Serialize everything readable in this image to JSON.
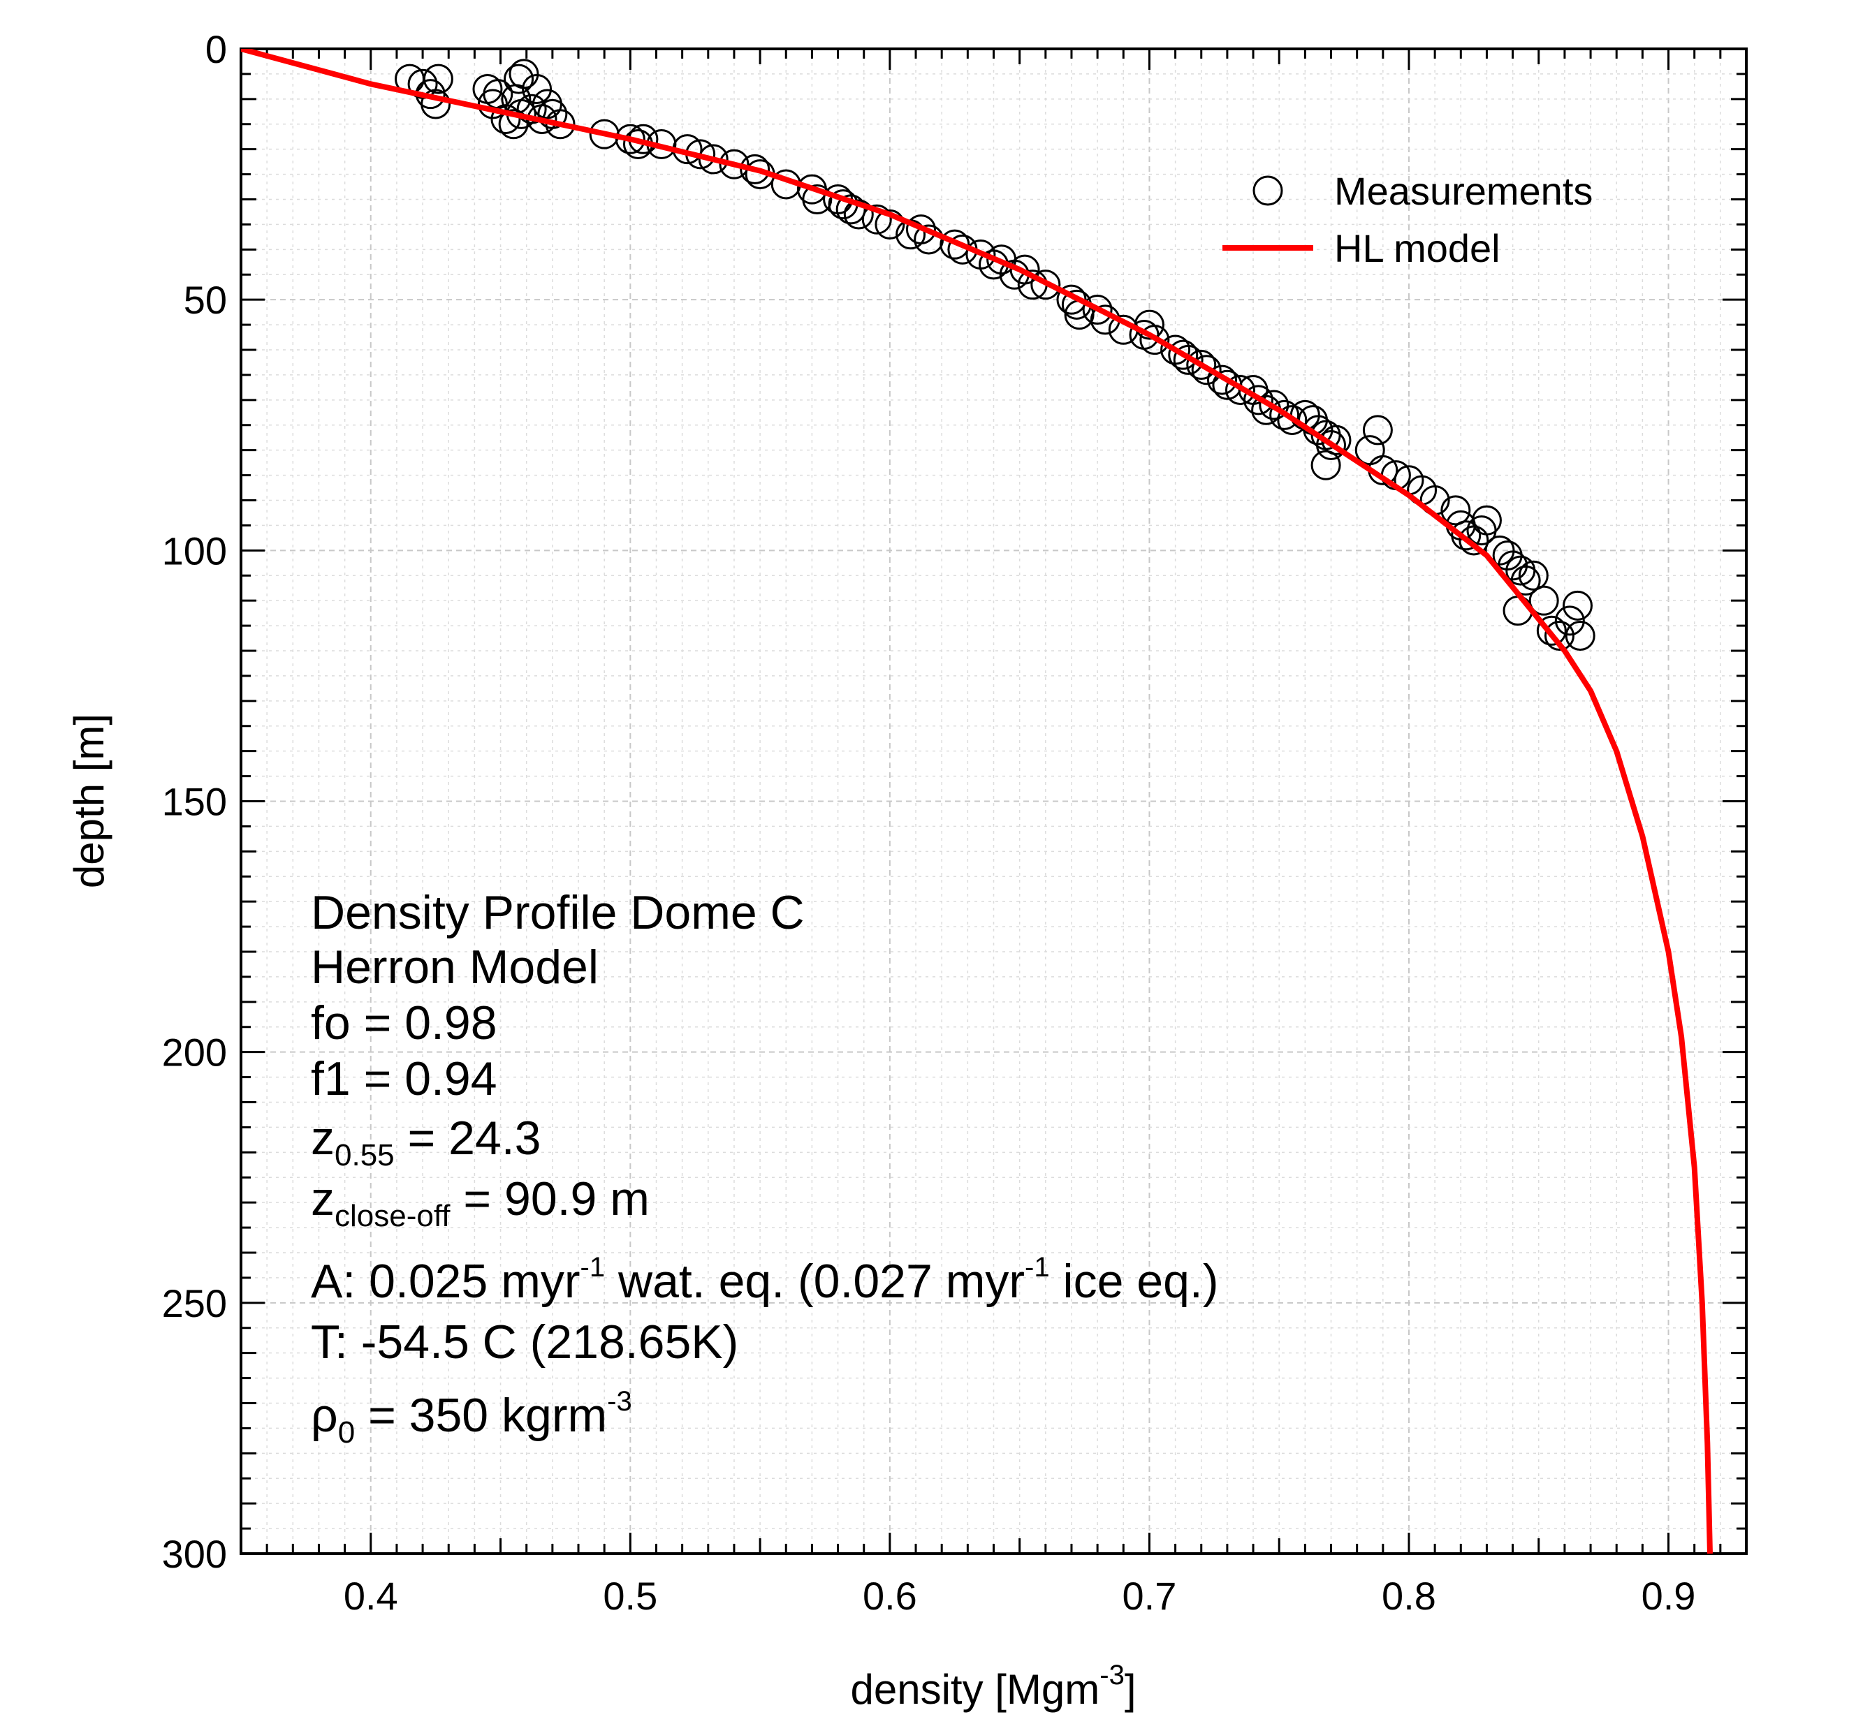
{
  "chart_data": {
    "type": "scatter",
    "xlabel": "density [Mgm",
    "xlabel_sup": "-3",
    "xlabel_end": "]",
    "ylabel": "depth [m]",
    "xlim": [
      0.35,
      0.93
    ],
    "ylim": [
      300,
      0
    ],
    "x_ticks": [
      0.4,
      0.5,
      0.6,
      0.7,
      0.8,
      0.9
    ],
    "x_tick_labels": [
      "0.4",
      "0.5",
      "0.6",
      "0.7",
      "0.8",
      "0.9"
    ],
    "y_ticks": [
      0,
      50,
      100,
      150,
      200,
      250,
      300
    ],
    "y_tick_labels": [
      "0",
      "50",
      "100",
      "150",
      "200",
      "250",
      "300"
    ],
    "grid": true,
    "legend_position": "top-right",
    "legend": [
      {
        "label": "Measurements",
        "marker": "open-circle",
        "color": "#000000"
      },
      {
        "label": "HL model",
        "marker": "line",
        "color": "#ff0000"
      }
    ],
    "series": [
      {
        "name": "Measurements",
        "type": "scatter",
        "color": "#000000",
        "points": [
          [
            0.415,
            6
          ],
          [
            0.42,
            7
          ],
          [
            0.423,
            9
          ],
          [
            0.425,
            11
          ],
          [
            0.426,
            6
          ],
          [
            0.445,
            8
          ],
          [
            0.447,
            11
          ],
          [
            0.449,
            9
          ],
          [
            0.452,
            14
          ],
          [
            0.455,
            15
          ],
          [
            0.456,
            10
          ],
          [
            0.457,
            6
          ],
          [
            0.458,
            13
          ],
          [
            0.459,
            5
          ],
          [
            0.462,
            12
          ],
          [
            0.464,
            8
          ],
          [
            0.466,
            14
          ],
          [
            0.468,
            11
          ],
          [
            0.47,
            13
          ],
          [
            0.473,
            15
          ],
          [
            0.49,
            17
          ],
          [
            0.5,
            18
          ],
          [
            0.503,
            19
          ],
          [
            0.505,
            18
          ],
          [
            0.512,
            19
          ],
          [
            0.522,
            20
          ],
          [
            0.527,
            21
          ],
          [
            0.532,
            22
          ],
          [
            0.54,
            23
          ],
          [
            0.548,
            24
          ],
          [
            0.55,
            25
          ],
          [
            0.56,
            27
          ],
          [
            0.57,
            28
          ],
          [
            0.572,
            30
          ],
          [
            0.58,
            30
          ],
          [
            0.582,
            31
          ],
          [
            0.585,
            32
          ],
          [
            0.588,
            33
          ],
          [
            0.595,
            34
          ],
          [
            0.6,
            35
          ],
          [
            0.608,
            37
          ],
          [
            0.612,
            36
          ],
          [
            0.615,
            38
          ],
          [
            0.625,
            39
          ],
          [
            0.628,
            40
          ],
          [
            0.635,
            41
          ],
          [
            0.64,
            43
          ],
          [
            0.643,
            42
          ],
          [
            0.648,
            45
          ],
          [
            0.652,
            44
          ],
          [
            0.655,
            47
          ],
          [
            0.66,
            47
          ],
          [
            0.67,
            50
          ],
          [
            0.672,
            51
          ],
          [
            0.673,
            53
          ],
          [
            0.68,
            52
          ],
          [
            0.683,
            54
          ],
          [
            0.69,
            56
          ],
          [
            0.698,
            57
          ],
          [
            0.7,
            55
          ],
          [
            0.702,
            58
          ],
          [
            0.71,
            60
          ],
          [
            0.713,
            61
          ],
          [
            0.715,
            62
          ],
          [
            0.72,
            63
          ],
          [
            0.722,
            64
          ],
          [
            0.728,
            66
          ],
          [
            0.73,
            67
          ],
          [
            0.735,
            68
          ],
          [
            0.74,
            68
          ],
          [
            0.742,
            70
          ],
          [
            0.745,
            72
          ],
          [
            0.748,
            71
          ],
          [
            0.752,
            73
          ],
          [
            0.755,
            74
          ],
          [
            0.76,
            73
          ],
          [
            0.763,
            74
          ],
          [
            0.765,
            76
          ],
          [
            0.768,
            77
          ],
          [
            0.77,
            79
          ],
          [
            0.772,
            78
          ],
          [
            0.768,
            83
          ],
          [
            0.785,
            80
          ],
          [
            0.788,
            76
          ],
          [
            0.79,
            84
          ],
          [
            0.795,
            85
          ],
          [
            0.8,
            86
          ],
          [
            0.805,
            88
          ],
          [
            0.81,
            90
          ],
          [
            0.818,
            92
          ],
          [
            0.82,
            95
          ],
          [
            0.822,
            97
          ],
          [
            0.825,
            98
          ],
          [
            0.828,
            96
          ],
          [
            0.83,
            94
          ],
          [
            0.835,
            100
          ],
          [
            0.838,
            101
          ],
          [
            0.84,
            103
          ],
          [
            0.843,
            104
          ],
          [
            0.845,
            106
          ],
          [
            0.848,
            105
          ],
          [
            0.842,
            112
          ],
          [
            0.852,
            110
          ],
          [
            0.855,
            116
          ],
          [
            0.858,
            117
          ],
          [
            0.862,
            114
          ],
          [
            0.865,
            111
          ],
          [
            0.866,
            117
          ]
        ]
      },
      {
        "name": "HL model",
        "type": "line",
        "color": "#ff0000",
        "points": [
          [
            0.35,
            0
          ],
          [
            0.4,
            7
          ],
          [
            0.45,
            12.5
          ],
          [
            0.5,
            18
          ],
          [
            0.55,
            24.3
          ],
          [
            0.6,
            33
          ],
          [
            0.65,
            44
          ],
          [
            0.7,
            57
          ],
          [
            0.75,
            72
          ],
          [
            0.8,
            89
          ],
          [
            0.83,
            101
          ],
          [
            0.86,
            120
          ],
          [
            0.87,
            128
          ],
          [
            0.88,
            140
          ],
          [
            0.89,
            157
          ],
          [
            0.9,
            180
          ],
          [
            0.905,
            197
          ],
          [
            0.91,
            223
          ],
          [
            0.913,
            250
          ],
          [
            0.915,
            278
          ],
          [
            0.916,
            300
          ]
        ]
      }
    ]
  },
  "annotations": {
    "title": "Density Profile Dome C",
    "model": "Herron Model",
    "fo": "fo = 0.98",
    "f1": "f1 = 0.94",
    "z055_base": "z",
    "z055_sub": "0.55",
    "z055_val": " = 24.3",
    "zclose_base": "z",
    "zclose_sub": "close-off",
    "zclose_val": " = 90.9 m",
    "acc_a": "A: 0.025 myr",
    "acc_sup1": "-1",
    "acc_b": " wat. eq.  (0.027 myr",
    "acc_sup2": "-1",
    "acc_c": " ice eq.)",
    "temp": "T: -54.5 C (218.65K)",
    "rho_base": "ρ",
    "rho_sub": "0",
    "rho_val": " = 350 kgrm",
    "rho_sup": "-3"
  }
}
